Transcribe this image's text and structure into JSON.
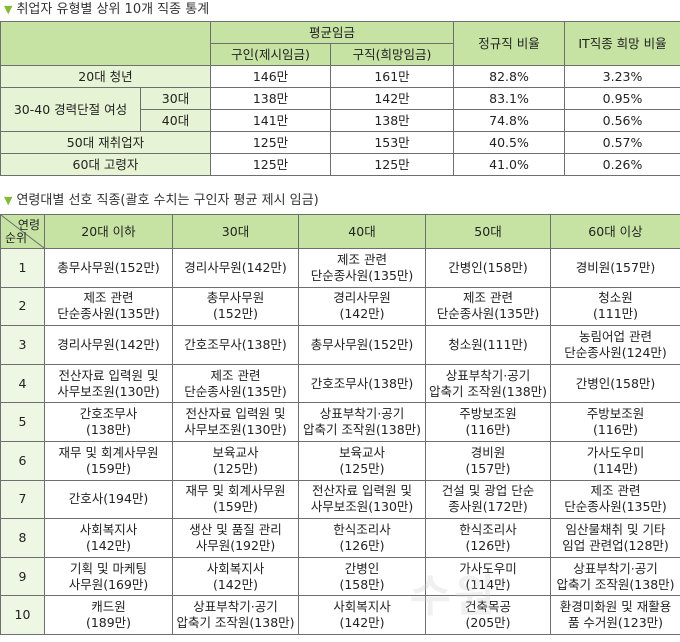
{
  "section1": {
    "title": "취업자 유형별 상위 10개 직종 통계",
    "headers": {
      "avg_wage": "평균임금",
      "seeker": "구인(제시임금)",
      "job": "구직(희망임금)",
      "regular": "정규직 비율",
      "it_hope": "IT직종 희망 비율"
    },
    "group_label": "30-40 경력단절 여성",
    "rows": [
      {
        "label": "20대 청년",
        "offer": "146만",
        "desired": "161만",
        "regular": "82.8%",
        "it": "3.23%"
      },
      {
        "label": "30대",
        "offer": "138만",
        "desired": "142만",
        "regular": "83.1%",
        "it": "0.95%"
      },
      {
        "label": "40대",
        "offer": "141만",
        "desired": "138만",
        "regular": "74.8%",
        "it": "0.56%"
      },
      {
        "label": "50대 재취업자",
        "offer": "125만",
        "desired": "153만",
        "regular": "40.5%",
        "it": "0.57%"
      },
      {
        "label": "60대 고령자",
        "offer": "125만",
        "desired": "125만",
        "regular": "41.0%",
        "it": "0.26%"
      }
    ]
  },
  "section2": {
    "title": "연령대별 선호 직종(괄호 수치는 구인자 평균 제시 임금)",
    "corner_top": "연령",
    "corner_bottom": "순위",
    "columns": [
      "20대 이하",
      "30대",
      "40대",
      "50대",
      "60대 이상"
    ],
    "rows": [
      {
        "rank": "1",
        "cells": [
          [
            "총무사무원(152만)"
          ],
          [
            "경리사무원(142만)"
          ],
          [
            "제조 관련",
            "단순종사원(135만)"
          ],
          [
            "간병인(158만)"
          ],
          [
            "경비원(157만)"
          ]
        ]
      },
      {
        "rank": "2",
        "cells": [
          [
            "제조 관련",
            "단순종사원(135만)"
          ],
          [
            "총무사무원",
            "(152만)"
          ],
          [
            "경리사무원",
            "(142만)"
          ],
          [
            "제조 관련",
            "단순종사원(135만)"
          ],
          [
            "청소원",
            "(111만)"
          ]
        ]
      },
      {
        "rank": "3",
        "cells": [
          [
            "경리사무원(142만)"
          ],
          [
            "간호조무사(138만)"
          ],
          [
            "총무사무원(152만)"
          ],
          [
            "청소원(111만)"
          ],
          [
            "농림어업 관련",
            "단순종사원(124만)"
          ]
        ]
      },
      {
        "rank": "4",
        "cells": [
          [
            "전산자료 입력원 및",
            "사무보조원(130만)"
          ],
          [
            "제조 관련",
            "단순종사원(135만)"
          ],
          [
            "간호조무사(138만)"
          ],
          [
            "상표부착기·공기",
            "압축기 조작원(138만)"
          ],
          [
            "간병인(158만)"
          ]
        ]
      },
      {
        "rank": "5",
        "cells": [
          [
            "간호조무사",
            "(138만)"
          ],
          [
            "전산자료 입력원 및",
            "사무보조원(130만)"
          ],
          [
            "상표부착기·공기",
            "압축기 조작원(138만)"
          ],
          [
            "주방보조원",
            "(116만)"
          ],
          [
            "주방보조원",
            "(116만)"
          ]
        ]
      },
      {
        "rank": "6",
        "cells": [
          [
            "재무 및 회계사무원",
            "(159만)"
          ],
          [
            "보육교사",
            "(125만)"
          ],
          [
            "보육교사",
            "(125만)"
          ],
          [
            "경비원",
            "(157만)"
          ],
          [
            "가사도우미",
            "(114만)"
          ]
        ]
      },
      {
        "rank": "7",
        "cells": [
          [
            "간호사(194만)"
          ],
          [
            "재무 및 회계사무원",
            "(159만)"
          ],
          [
            "전산자료 입력원 및",
            "사무보조원(130만)"
          ],
          [
            "건설 및 광업 단순",
            "종사원(172만)"
          ],
          [
            "제조 관련",
            "단순종사원(135만)"
          ]
        ]
      },
      {
        "rank": "8",
        "cells": [
          [
            "사회복지사",
            "(142만)"
          ],
          [
            "생산 및 품질 관리",
            "사무원(192만)"
          ],
          [
            "한식조리사",
            "(126만)"
          ],
          [
            "한식조리사",
            "(126만)"
          ],
          [
            "임산물채취 및 기타",
            "임업 관련업(128만)"
          ]
        ]
      },
      {
        "rank": "9",
        "cells": [
          [
            "기획 및 마케팅",
            "사무원(169만)"
          ],
          [
            "사회복지사",
            "(142만)"
          ],
          [
            "간병인",
            "(158만)"
          ],
          [
            "가사도우미",
            "(114만)"
          ],
          [
            "상표부착기·공기",
            "압축기 조작원(138만)"
          ]
        ]
      },
      {
        "rank": "10",
        "cells": [
          [
            "캐드원",
            "(189만)"
          ],
          [
            "상표부착기·공기",
            "압축기 조작원(138만)"
          ],
          [
            "사회복지사",
            "(142만)"
          ],
          [
            "건축목공",
            "(205만)"
          ],
          [
            "환경미화원 및 재활용",
            "품 수거원(123만)"
          ]
        ]
      }
    ]
  }
}
